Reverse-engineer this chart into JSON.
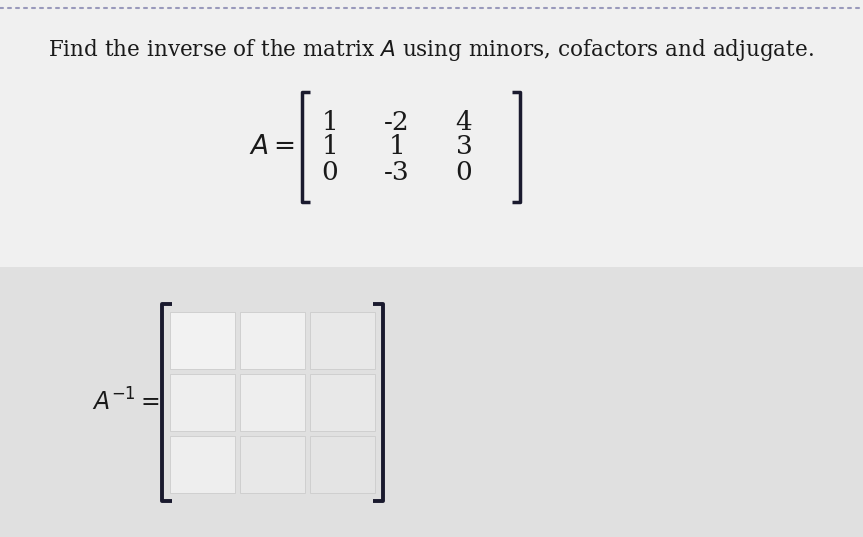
{
  "title": "Find the inverse of the matrix $A$ using minors, cofactors and adjugate.",
  "title_fontsize": 15.5,
  "background_color": "#f0f0f0",
  "top_area_color": "#f0f0f0",
  "bottom_panel_color": "#e2e2e2",
  "matrix_A_rows": [
    [
      "1",
      "-2",
      "4"
    ],
    [
      "1",
      "1",
      "3"
    ],
    [
      "0",
      "-3",
      "0"
    ]
  ],
  "matrix_A_fontsize": 19,
  "inverse_label_fontsize": 17,
  "cell_color_light": "#efefef",
  "cell_color_dark": "#e4e4e4",
  "bracket_color": "#1a1a2e",
  "dot_color": "#9999bb"
}
